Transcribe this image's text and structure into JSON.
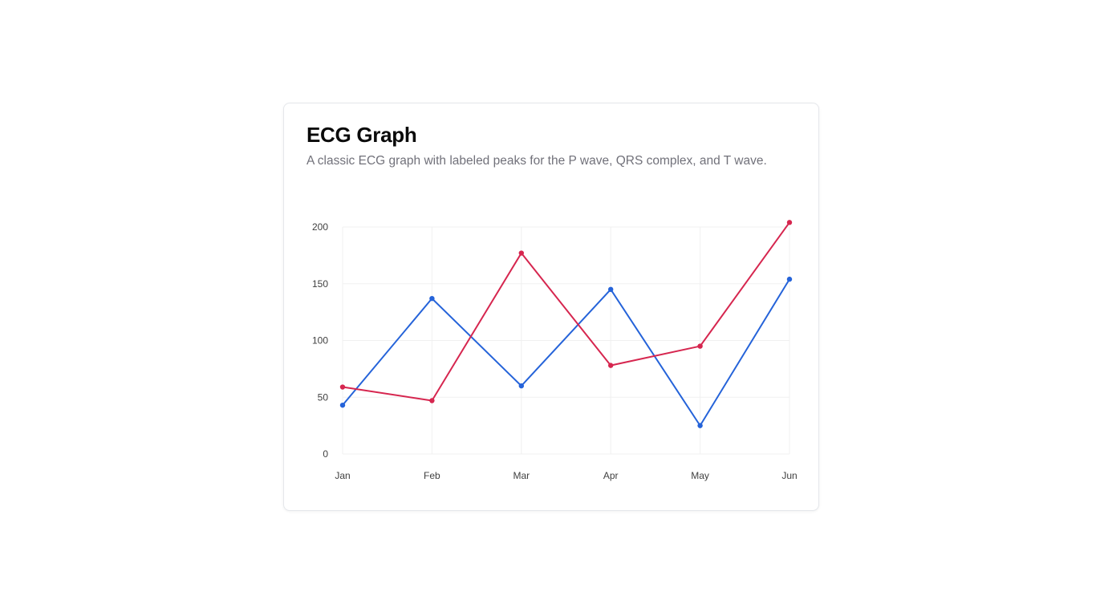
{
  "card": {
    "title": "ECG Graph",
    "description": "A classic ECG graph with labeled peaks for the P wave, QRS complex, and T wave."
  },
  "chart_data": {
    "type": "line",
    "categories": [
      "Jan",
      "Feb",
      "Mar",
      "Apr",
      "May",
      "Jun"
    ],
    "series": [
      {
        "color": "#2563d9",
        "values": [
          43,
          137,
          60,
          145,
          25,
          154
        ]
      },
      {
        "color": "#d6264f",
        "values": [
          59,
          47,
          177,
          78,
          95,
          204
        ]
      }
    ],
    "yticks": [
      0,
      50,
      100,
      150,
      200
    ],
    "ylim": [
      0,
      200
    ],
    "grid": true,
    "legend": "none"
  }
}
